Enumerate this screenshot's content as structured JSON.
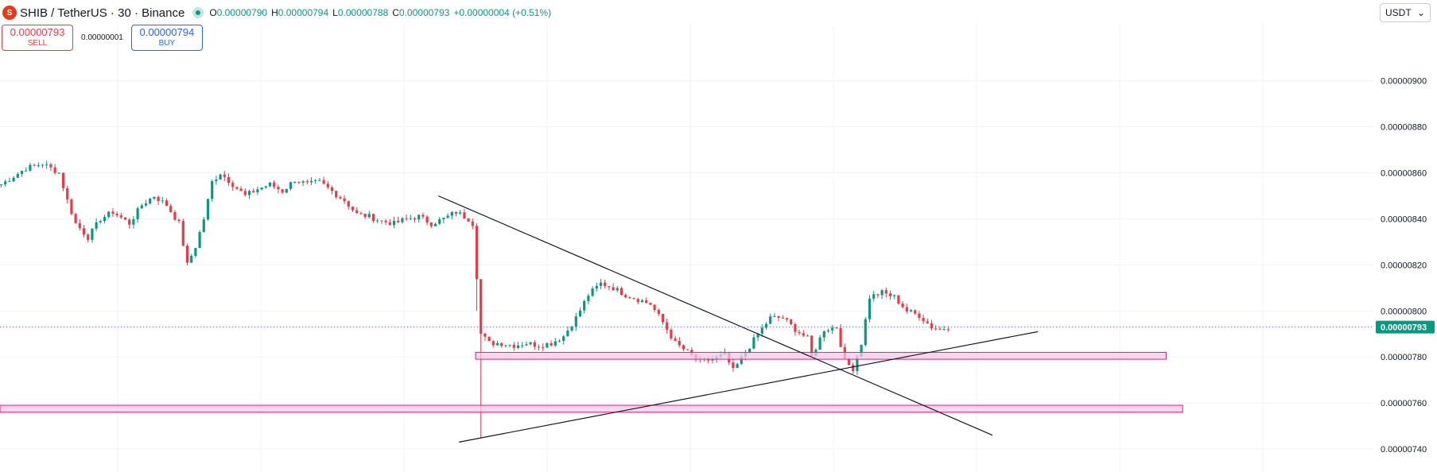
{
  "header": {
    "symbol": "SHIB / TetherUS · 30 · Binance",
    "logo_icon": "shib-logo-icon",
    "o_label": "O",
    "o_value": "0.00000790",
    "h_label": "H",
    "h_value": "0.00000794",
    "l_label": "L",
    "l_value": "0.00000788",
    "c_label": "C",
    "c_value": "0.00000793",
    "change": "+0.00000004 (+0.51%)"
  },
  "trade": {
    "sell_price": "0.00000793",
    "sell_label": "SELL",
    "spread": "0.00000001",
    "buy_price": "0.00000794",
    "buy_label": "BUY"
  },
  "currency_select": {
    "value": "USDT",
    "icon": "chevron-down-icon"
  },
  "colors": {
    "up": "#089981",
    "down": "#f23645",
    "zone_fill": "#f3c8ec",
    "zone_stroke": "#e91e63",
    "trendline": "#131722"
  },
  "chart_data": {
    "type": "candlestick",
    "y_ticks": [
      "0.00000740",
      "0.00000760",
      "0.00000780",
      "0.00000800",
      "0.00000820",
      "0.00000840",
      "0.00000860",
      "0.00000880",
      "0.00000900"
    ],
    "ylim": [
      7.3e-06,
      9.22e-06
    ],
    "last_price_label": "0.00000793",
    "last_price": 7.93e-06,
    "grid": true,
    "close_path": [
      [
        0,
        8.55e-06
      ],
      [
        6,
        8.62e-06
      ],
      [
        10,
        8.64e-06
      ],
      [
        14,
        8.6e-06
      ],
      [
        16,
        8.48e-06
      ],
      [
        18,
        8.38e-06
      ],
      [
        21,
        8.32e-06
      ],
      [
        24,
        8.4e-06
      ],
      [
        27,
        8.43e-06
      ],
      [
        31,
        8.38e-06
      ],
      [
        34,
        8.46e-06
      ],
      [
        37,
        8.5e-06
      ],
      [
        40,
        8.46e-06
      ],
      [
        43,
        8.38e-06
      ],
      [
        45,
        8.2e-06
      ],
      [
        47,
        8.28e-06
      ],
      [
        49,
        8.4e-06
      ],
      [
        51,
        8.56e-06
      ],
      [
        53,
        8.6e-06
      ],
      [
        56,
        8.55e-06
      ],
      [
        59,
        8.5e-06
      ],
      [
        62,
        8.53e-06
      ],
      [
        65,
        8.55e-06
      ],
      [
        68,
        8.52e-06
      ],
      [
        71,
        8.57e-06
      ],
      [
        74,
        8.55e-06
      ],
      [
        77,
        8.56e-06
      ],
      [
        80,
        8.52e-06
      ],
      [
        83,
        8.48e-06
      ],
      [
        86,
        8.42e-06
      ],
      [
        89,
        8.41e-06
      ],
      [
        92,
        8.39e-06
      ],
      [
        95,
        8.38e-06
      ],
      [
        98,
        8.4e-06
      ],
      [
        101,
        8.41e-06
      ],
      [
        104,
        8.38e-06
      ],
      [
        107,
        8.4e-06
      ],
      [
        110,
        8.43e-06
      ],
      [
        113,
        8.4e-06
      ],
      [
        114,
        8.38e-06
      ],
      [
        115,
        8.15e-06
      ],
      [
        116,
        7.9e-06
      ],
      [
        118,
        7.86e-06
      ],
      [
        121,
        7.86e-06
      ],
      [
        124,
        7.85e-06
      ],
      [
        127,
        7.86e-06
      ],
      [
        130,
        7.85e-06
      ],
      [
        133,
        7.86e-06
      ],
      [
        136,
        7.89e-06
      ],
      [
        139,
        7.97e-06
      ],
      [
        142,
        8.07e-06
      ],
      [
        145,
        8.12e-06
      ],
      [
        148,
        8.1e-06
      ],
      [
        151,
        8.07e-06
      ],
      [
        154,
        8.05e-06
      ],
      [
        157,
        8.03e-06
      ],
      [
        160,
        7.95e-06
      ],
      [
        163,
        7.86e-06
      ],
      [
        166,
        7.82e-06
      ],
      [
        169,
        7.78e-06
      ],
      [
        172,
        7.79e-06
      ],
      [
        175,
        7.81e-06
      ],
      [
        177,
        7.74e-06
      ],
      [
        180,
        7.82e-06
      ],
      [
        183,
        7.9e-06
      ],
      [
        186,
        7.97e-06
      ],
      [
        189,
        7.97e-06
      ],
      [
        192,
        7.92e-06
      ],
      [
        195,
        7.88e-06
      ],
      [
        196,
        7.8e-06
      ],
      [
        199,
        7.92e-06
      ],
      [
        202,
        7.93e-06
      ],
      [
        204,
        7.78e-06
      ],
      [
        206,
        7.75e-06
      ],
      [
        208,
        7.86e-06
      ],
      [
        210,
        8.06e-06
      ],
      [
        213,
        8.08e-06
      ],
      [
        216,
        8.06e-06
      ],
      [
        219,
        8e-06
      ],
      [
        222,
        7.98e-06
      ],
      [
        225,
        7.93e-06
      ],
      [
        227,
        7.92e-06
      ],
      [
        229,
        7.93e-06
      ]
    ],
    "drawings": {
      "zones": [
        {
          "from_bar": 115,
          "to_bar": 282,
          "y_low": 7.79e-06,
          "y_high": 7.82e-06
        },
        {
          "from_bar": -5,
          "to_bar": 286,
          "y_low": 7.56e-06,
          "y_high": 7.59e-06
        }
      ],
      "trendlines": [
        {
          "x1": 106,
          "y1": 8.5e-06,
          "x2": 240,
          "y2": 7.46e-06
        },
        {
          "x1": 111,
          "y1": 7.43e-06,
          "x2": 251,
          "y2": 7.91e-06
        }
      ]
    }
  }
}
